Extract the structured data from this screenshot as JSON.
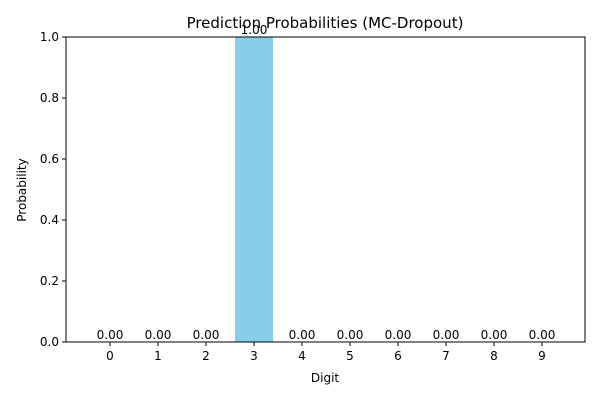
{
  "chart_data": {
    "type": "bar",
    "title": "Prediction Probabilities (MC-Dropout)",
    "xlabel": "Digit",
    "ylabel": "Probability",
    "categories": [
      "0",
      "1",
      "2",
      "3",
      "4",
      "5",
      "6",
      "7",
      "8",
      "9"
    ],
    "values": [
      0.0,
      0.0,
      0.0,
      1.0,
      0.0,
      0.0,
      0.0,
      0.0,
      0.0,
      0.0
    ],
    "value_labels": [
      "0.00",
      "0.00",
      "0.00",
      "1.00",
      "0.00",
      "0.00",
      "0.00",
      "0.00",
      "0.00",
      "0.00"
    ],
    "ylim": [
      0,
      1.0
    ],
    "yticks": [
      0.0,
      0.2,
      0.4,
      0.6,
      0.8,
      1.0
    ],
    "ytick_labels": [
      "0.0",
      "0.2",
      "0.4",
      "0.6",
      "0.8",
      "1.0"
    ],
    "bar_color": "#87ceeb",
    "grid": false,
    "legend": "none"
  }
}
